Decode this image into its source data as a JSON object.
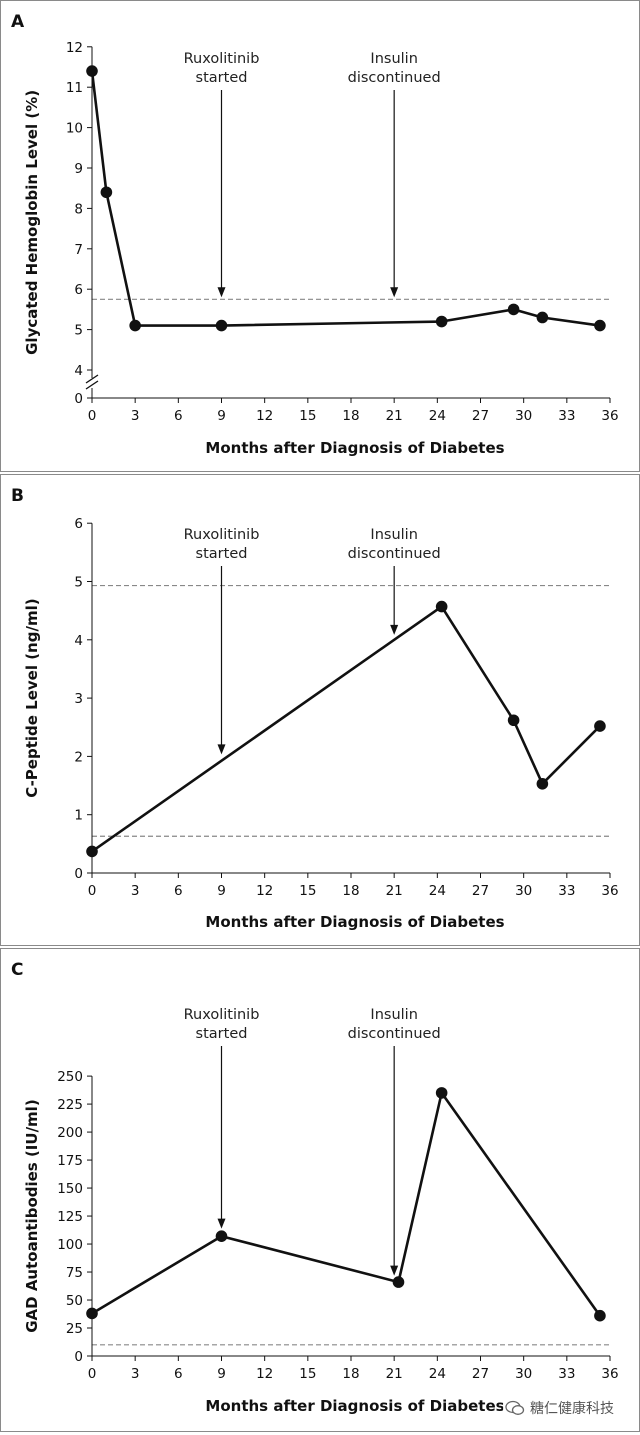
{
  "watermark": {
    "text": "糖仁健康科技",
    "icon": "wechat-icon"
  },
  "chart_data": [
    {
      "type": "line",
      "panel": "A",
      "ylabel": "Glycated Hemoglobin Level (%)",
      "xlabel": "Months after Diagnosis of Diabetes",
      "x_ticks": [
        0,
        3,
        6,
        9,
        12,
        15,
        18,
        21,
        24,
        27,
        30,
        33,
        36
      ],
      "y_ticks": [
        0,
        4,
        5,
        6,
        7,
        8,
        9,
        10,
        11,
        12
      ],
      "axis_break": "between 0 and 4",
      "xlim": [
        0,
        36
      ],
      "ylim": [
        4,
        12
      ],
      "reference_lines": [
        5.75
      ],
      "points": [
        {
          "x": 0,
          "y": 11.4
        },
        {
          "x": 1,
          "y": 8.4
        },
        {
          "x": 3,
          "y": 5.1
        },
        {
          "x": 9,
          "y": 5.1
        },
        {
          "x": 24.3,
          "y": 5.2
        },
        {
          "x": 29.3,
          "y": 5.5
        },
        {
          "x": 31.3,
          "y": 5.3
        },
        {
          "x": 35.3,
          "y": 5.1
        }
      ],
      "annotations": [
        {
          "lines": [
            "Ruxolitinib",
            "started"
          ],
          "x": 9,
          "arrow_to": 5.75
        },
        {
          "lines": [
            "Insulin",
            "discontinued"
          ],
          "x": 21,
          "arrow_to": 5.75
        }
      ],
      "colors": {
        "line": "#111111",
        "reference": "#888888"
      }
    },
    {
      "type": "line",
      "panel": "B",
      "ylabel": "C-Peptide Level (ng/ml)",
      "xlabel": "Months after Diagnosis of Diabetes",
      "x_ticks": [
        0,
        3,
        6,
        9,
        12,
        15,
        18,
        21,
        24,
        27,
        30,
        33,
        36
      ],
      "y_ticks": [
        0,
        1,
        2,
        3,
        4,
        5,
        6
      ],
      "xlim": [
        0,
        36
      ],
      "ylim": [
        0,
        6
      ],
      "reference_lines": [
        0.63,
        4.93
      ],
      "points": [
        {
          "x": 0,
          "y": 0.37
        },
        {
          "x": 24.3,
          "y": 4.57
        },
        {
          "x": 29.3,
          "y": 2.62
        },
        {
          "x": 31.3,
          "y": 1.53
        },
        {
          "x": 35.3,
          "y": 2.52
        }
      ],
      "annotations": [
        {
          "lines": [
            "Ruxolitinib",
            "started"
          ],
          "x": 9,
          "arrow_to": 2.0
        },
        {
          "lines": [
            "Insulin",
            "discontinued"
          ],
          "x": 21,
          "arrow_to": 4.05
        }
      ],
      "colors": {
        "line": "#111111",
        "reference": "#888888"
      }
    },
    {
      "type": "line",
      "panel": "C",
      "ylabel": "GAD Autoantibodies (IU/ml)",
      "xlabel": "Months after Diagnosis of Diabetes",
      "x_ticks": [
        0,
        3,
        6,
        9,
        12,
        15,
        18,
        21,
        24,
        27,
        30,
        33,
        36
      ],
      "y_ticks": [
        0,
        25,
        50,
        75,
        100,
        125,
        150,
        175,
        200,
        225,
        250
      ],
      "xlim": [
        0,
        36
      ],
      "ylim": [
        0,
        250
      ],
      "reference_lines": [
        10
      ],
      "points": [
        {
          "x": 0,
          "y": 38
        },
        {
          "x": 9,
          "y": 107
        },
        {
          "x": 21.3,
          "y": 66
        },
        {
          "x": 24.3,
          "y": 235
        },
        {
          "x": 35.3,
          "y": 36
        }
      ],
      "annotations": [
        {
          "lines": [
            "Ruxolitinib",
            "started"
          ],
          "x": 9,
          "arrow_to": 112
        },
        {
          "lines": [
            "Insulin",
            "discontinued"
          ],
          "x": 21,
          "arrow_to": 70
        }
      ],
      "colors": {
        "line": "#111111",
        "reference": "#888888"
      }
    }
  ]
}
